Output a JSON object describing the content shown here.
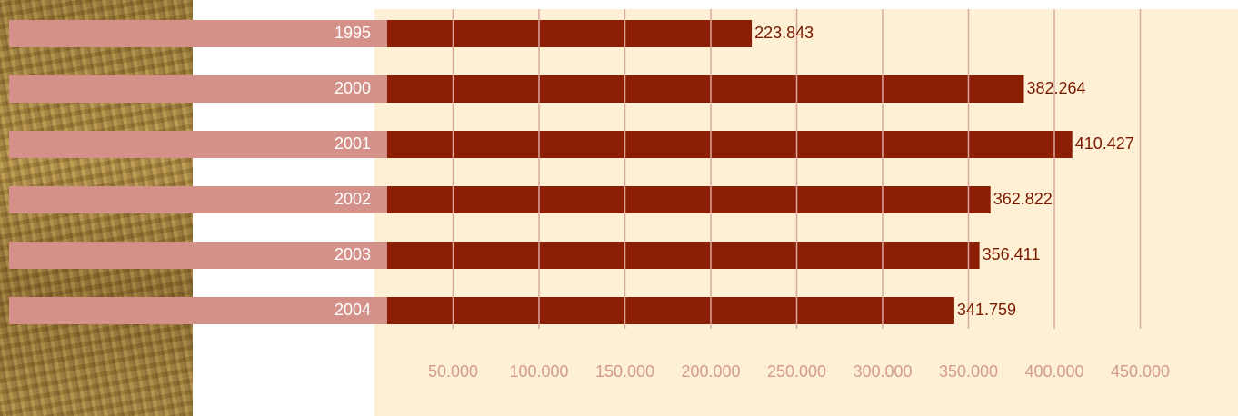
{
  "chart_data": {
    "type": "bar",
    "orientation": "horizontal",
    "categories": [
      "1995",
      "2000",
      "2001",
      "2002",
      "2003",
      "2004"
    ],
    "values": [
      223843,
      382264,
      410427,
      362822,
      356411,
      341759
    ],
    "value_labels": [
      "223.843",
      "382.264",
      "410.427",
      "362.822",
      "356.411",
      "341.759"
    ],
    "color": "#8b1e05",
    "label_color": "#d4918a",
    "xlim": [
      0,
      500000
    ],
    "xticks": [
      {
        "value": 50000,
        "label": "50.000"
      },
      {
        "value": 100000,
        "label": "100.000"
      },
      {
        "value": 150000,
        "label": "150.000"
      },
      {
        "value": 200000,
        "label": "200.000"
      },
      {
        "value": 250000,
        "label": "250.000"
      },
      {
        "value": 300000,
        "label": "300.000"
      },
      {
        "value": 350000,
        "label": "350.000"
      },
      {
        "value": 400000,
        "label": "400.000"
      },
      {
        "value": 450000,
        "label": "450.000"
      }
    ],
    "grid": true
  }
}
